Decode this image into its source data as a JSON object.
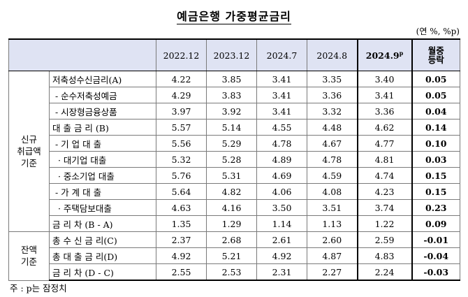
{
  "title": "예금은행 가중평균금리",
  "unit": "(연 %, %p)",
  "headers": {
    "cols": [
      "2022.12",
      "2023.12",
      "2024.7",
      "2024.8"
    ],
    "current_base": "2024.9",
    "current_sup": "p",
    "change_line1": "월중",
    "change_line2": "등락"
  },
  "groups": {
    "new_line1": "신규",
    "new_line2": "취급액",
    "new_line3": "기준",
    "bal_line1": "잔액",
    "bal_line2": "기준"
  },
  "rows": [
    {
      "label": "저축성수신금리(A)",
      "values": [
        "4.22",
        "3.85",
        "3.41",
        "3.35",
        "3.40"
      ],
      "change": "0.05"
    },
    {
      "label": " - 순수저축성예금",
      "values": [
        "4.29",
        "3.83",
        "3.41",
        "3.36",
        "3.41"
      ],
      "change": "0.05"
    },
    {
      "label": " - 시장형금융상품",
      "values": [
        "3.97",
        "3.92",
        "3.41",
        "3.32",
        "3.36"
      ],
      "change": "0.04"
    },
    {
      "label": "대 출 금 리 (B)",
      "values": [
        "5.57",
        "5.14",
        "4.55",
        "4.48",
        "4.62"
      ],
      "change": "0.14"
    },
    {
      "label": " - 기 업 대 출",
      "values": [
        "5.56",
        "5.29",
        "4.78",
        "4.67",
        "4.77"
      ],
      "change": "0.10"
    },
    {
      "label": "  · 대기업 대출",
      "values": [
        "5.32",
        "5.28",
        "4.89",
        "4.78",
        "4.81"
      ],
      "change": "0.03"
    },
    {
      "label": "  · 중소기업 대출",
      "values": [
        "5.76",
        "5.31",
        "4.69",
        "4.59",
        "4.74"
      ],
      "change": "0.15"
    },
    {
      "label": " - 가 계 대 출",
      "values": [
        "5.64",
        "4.82",
        "4.06",
        "4.08",
        "4.23"
      ],
      "change": "0.15"
    },
    {
      "label": "  · 주택담보대출",
      "values": [
        "4.63",
        "4.16",
        "3.50",
        "3.51",
        "3.74"
      ],
      "change": "0.23"
    },
    {
      "label": "금 리 차 (B - A)",
      "values": [
        "1.35",
        "1.29",
        "1.14",
        "1.13",
        "1.22"
      ],
      "change": "0.09"
    },
    {
      "label": "총 수 신 금 리(C)",
      "values": [
        "2.37",
        "2.68",
        "2.61",
        "2.60",
        "2.59"
      ],
      "change": "-0.01"
    },
    {
      "label": "총 대 출 금 리(D)",
      "values": [
        "4.92",
        "5.21",
        "4.92",
        "4.87",
        "4.83"
      ],
      "change": "-0.04"
    },
    {
      "label": "금 리 차 (D - C)",
      "values": [
        "2.55",
        "2.53",
        "2.31",
        "2.27",
        "2.24"
      ],
      "change": "-0.03"
    }
  ],
  "note": "주 : p는 잠정치"
}
